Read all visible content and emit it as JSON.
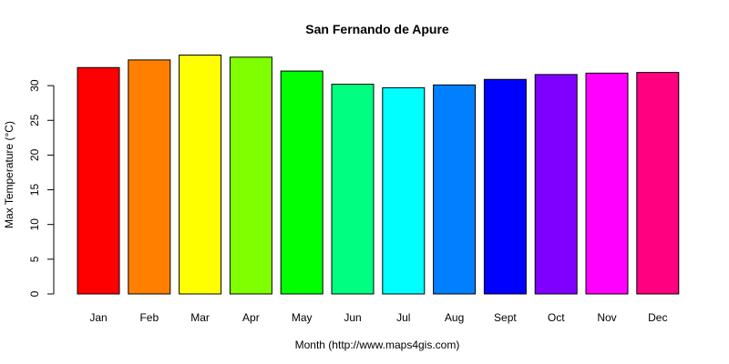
{
  "chart_data": {
    "type": "bar",
    "title": "San Fernando de Apure",
    "xlabel": "Month (http://www.maps4gis.com)",
    "ylabel": "Max Temperature (°C)",
    "categories": [
      "Jan",
      "Feb",
      "Mar",
      "Apr",
      "May",
      "Jun",
      "Jul",
      "Aug",
      "Sept",
      "Oct",
      "Nov",
      "Dec"
    ],
    "values": [
      32.6,
      33.7,
      34.4,
      34.1,
      32.1,
      30.2,
      29.7,
      30.1,
      30.9,
      31.6,
      31.8,
      31.9
    ],
    "colors": [
      "#FF0000",
      "#FF8000",
      "#FFFF00",
      "#80FF00",
      "#00FF00",
      "#00FF80",
      "#00FFFF",
      "#0080FF",
      "#0000FF",
      "#8000FF",
      "#FF00FF",
      "#FF0080"
    ],
    "yticks": [
      0,
      5,
      10,
      15,
      20,
      25,
      30
    ],
    "ylim": [
      0,
      34.4
    ],
    "grid": false,
    "legend": "none"
  }
}
